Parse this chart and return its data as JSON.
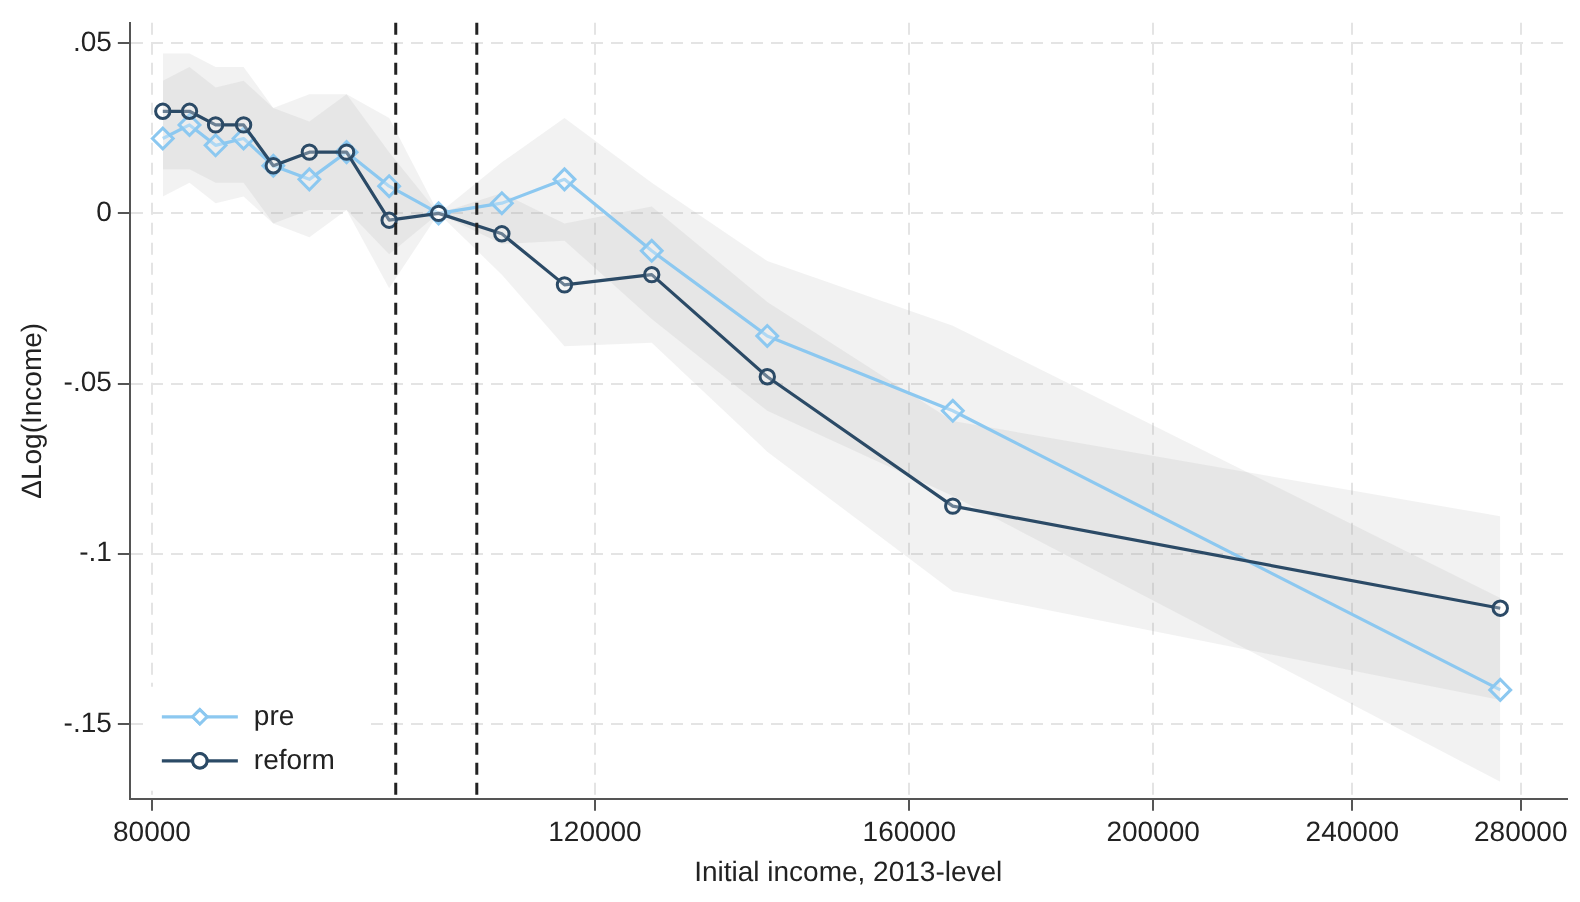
{
  "chart_data": {
    "type": "line",
    "xlabel": "Initial income, 2013-level",
    "ylabel": "ΔLog(Income)",
    "x": [
      80800,
      82800,
      84800,
      87000,
      89400,
      92400,
      95600,
      99400,
      104000,
      110200,
      116700,
      126400,
      140500,
      166500,
      274800
    ],
    "series": [
      {
        "name": "pre",
        "color": "#8cc8f0",
        "marker": "diamond",
        "values": [
          0.022,
          0.026,
          0.02,
          0.022,
          0.014,
          0.01,
          0.018,
          0.008,
          0,
          0.003,
          0.01,
          -0.011,
          -0.036,
          -0.058,
          -0.14
        ],
        "lower": [
          0.005,
          0.009,
          0.003,
          0.005,
          -0.003,
          -0.007,
          0.001,
          -0.012,
          0,
          -0.009,
          -0.008,
          -0.031,
          -0.058,
          -0.083,
          -0.167
        ],
        "upper": [
          0.039,
          0.043,
          0.037,
          0.039,
          0.031,
          0.027,
          0.035,
          0.028,
          0,
          0.015,
          0.028,
          0.009,
          -0.014,
          -0.033,
          -0.113
        ]
      },
      {
        "name": "reform",
        "color": "#2b4a66",
        "marker": "circle",
        "values": [
          0.03,
          0.03,
          0.026,
          0.026,
          0.014,
          0.018,
          0.018,
          -0.002,
          0,
          -0.006,
          -0.021,
          -0.018,
          -0.048,
          -0.086,
          -0.116
        ],
        "lower": [
          0.013,
          0.013,
          0.009,
          0.009,
          -0.003,
          0.001,
          0.001,
          -0.022,
          0,
          -0.018,
          -0.039,
          -0.038,
          -0.07,
          -0.111,
          -0.143
        ],
        "upper": [
          0.047,
          0.047,
          0.043,
          0.043,
          0.031,
          0.035,
          0.035,
          0.018,
          0,
          0.006,
          -0.003,
          0.002,
          -0.026,
          -0.061,
          -0.089
        ]
      }
    ],
    "log": "x",
    "xlim": [
      78400,
      292000
    ],
    "xticks": [
      80000,
      120000,
      160000,
      200000,
      240000,
      280000
    ],
    "ylim": [
      -0.172,
      0.056
    ],
    "yticks": [
      {
        "value": 0.05,
        "label": ".05"
      },
      0,
      {
        "value": -0.05,
        "label": "-.05"
      },
      {
        "value": -0.1,
        "label": "-.1"
      },
      {
        "value": -0.15,
        "label": "-.15"
      }
    ],
    "ref_lines": [
      {
        "axis": "x",
        "value": 100000,
        "color": "#222222",
        "line_style": "dashed"
      },
      {
        "axis": "x",
        "value": 107700,
        "color": "#222222",
        "line_style": "dashed"
      }
    ],
    "grid": true,
    "legend": "bottom left",
    "line_style": "solid"
  }
}
